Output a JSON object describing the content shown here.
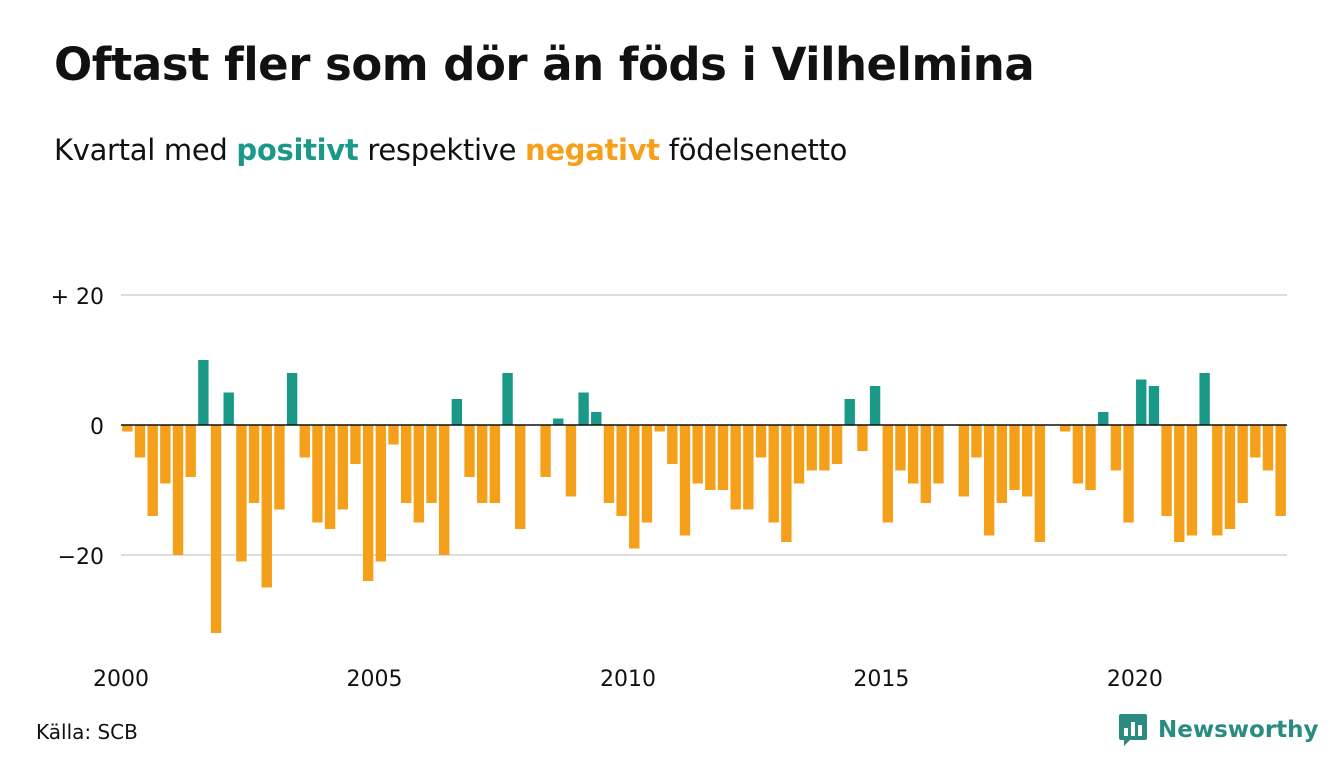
{
  "title": "Oftast fler som dör än föds i Vilhelmina",
  "subtitle": {
    "prefix": "Kvartal med",
    "positive_word": "positivt",
    "middle": "respektive",
    "negative_word": "negativt",
    "suffix": "födelsenetto"
  },
  "colors": {
    "positive": "#1a9988",
    "negative": "#f5a01a"
  },
  "source": "Källa: SCB",
  "brand": {
    "name": "Newsworthy",
    "logo_icon": "bar-chart-speech-bubble-icon"
  },
  "chart_data": {
    "type": "bar",
    "x_start": 2000,
    "frequency": "quarterly",
    "y_ticks": [
      {
        "value": 20,
        "label": "+ 20"
      },
      {
        "value": 0,
        "label": "0"
      },
      {
        "value": -20,
        "label": "−20"
      }
    ],
    "x_ticks": [
      {
        "value": 2000,
        "label": "2000"
      },
      {
        "value": 2005,
        "label": "2005"
      },
      {
        "value": 2010,
        "label": "2010"
      },
      {
        "value": 2015,
        "label": "2015"
      },
      {
        "value": 2020,
        "label": "2020"
      }
    ],
    "ylim": [
      -33,
      20
    ],
    "grid": true,
    "values": [
      -1,
      -5,
      -14,
      -9,
      -20,
      -8,
      10,
      -32,
      5,
      -21,
      -12,
      -25,
      -13,
      8,
      -5,
      -15,
      -16,
      -13,
      -6,
      -24,
      -21,
      -3,
      -12,
      -15,
      -12,
      -20,
      4,
      -8,
      -12,
      -12,
      8,
      -16,
      0,
      -8,
      1,
      -11,
      5,
      2,
      -12,
      -14,
      -19,
      -15,
      -1,
      -6,
      -17,
      -9,
      -10,
      -10,
      -13,
      -13,
      -5,
      -15,
      -18,
      -9,
      -7,
      -7,
      -6,
      4,
      -4,
      6,
      -15,
      -7,
      -9,
      -12,
      -9,
      0,
      -11,
      -5,
      -17,
      -12,
      -10,
      -11,
      -18,
      0,
      -1,
      -9,
      -10,
      2,
      -7,
      -15,
      7,
      6,
      -14,
      -18,
      -17,
      8,
      -17,
      -16,
      -12,
      -5,
      -7,
      -14
    ]
  }
}
